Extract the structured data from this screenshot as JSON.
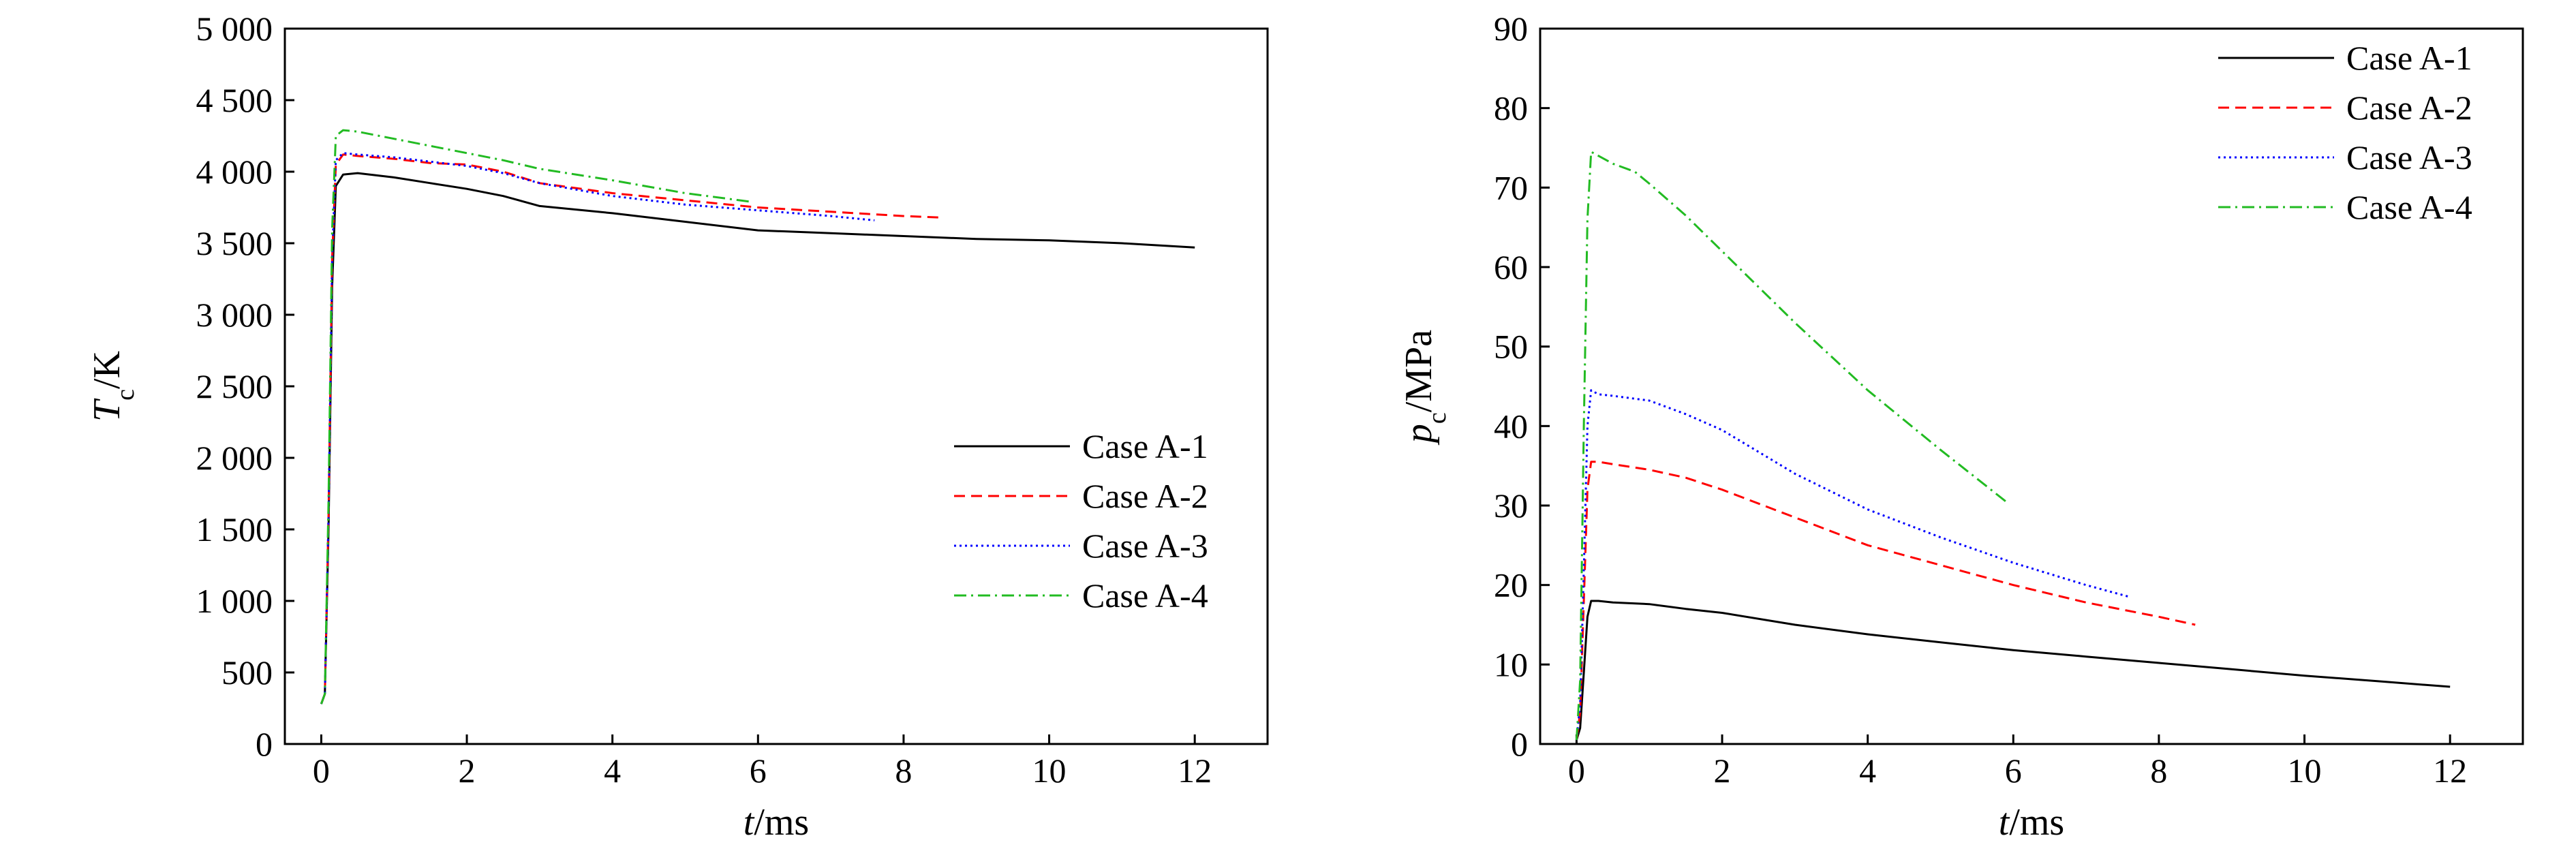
{
  "chart_data": [
    {
      "type": "line",
      "title": "",
      "xlabel": {
        "var": "t",
        "sub": "",
        "unit": "/ms"
      },
      "ylabel": {
        "var": "T",
        "sub": "c",
        "unit": "/K"
      },
      "xlim": [
        -0.5,
        13
      ],
      "ylim": [
        0,
        5000
      ],
      "xticks": [
        0,
        2,
        4,
        6,
        8,
        10,
        12
      ],
      "xtick_labels": [
        "0",
        "2",
        "4",
        "6",
        "8",
        "10",
        "12"
      ],
      "yticks": [
        0,
        500,
        1000,
        1500,
        2000,
        2500,
        3000,
        3500,
        4000,
        4500,
        5000
      ],
      "ytick_labels": [
        "0",
        "500",
        "1 000",
        "1 500",
        "2 000",
        "2 500",
        "3 000",
        "3 500",
        "4 000",
        "4 500",
        "5 000"
      ],
      "grid": false,
      "legend_position": "center-right",
      "series": [
        {
          "name": "Case A-1",
          "color": "#000000",
          "dash": "solid",
          "x": [
            0.0,
            0.05,
            0.1,
            0.15,
            0.2,
            0.3,
            0.5,
            1.0,
            1.5,
            2.0,
            2.5,
            3.0,
            4.0,
            5.0,
            6.0,
            7.0,
            8.0,
            9.0,
            10.0,
            11.0,
            12.0
          ],
          "y": [
            280,
            350,
            1500,
            3200,
            3900,
            3980,
            3990,
            3960,
            3920,
            3880,
            3830,
            3760,
            3710,
            3650,
            3590,
            3570,
            3550,
            3530,
            3520,
            3500,
            3470
          ]
        },
        {
          "name": "Case A-2",
          "color": "#ff0000",
          "dash": "dashed",
          "x": [
            0.0,
            0.05,
            0.1,
            0.15,
            0.2,
            0.3,
            0.5,
            1.0,
            1.5,
            2.0,
            2.5,
            3.0,
            4.0,
            5.0,
            6.0,
            7.0,
            8.0,
            8.5
          ],
          "y": [
            280,
            350,
            1600,
            3400,
            4050,
            4120,
            4110,
            4090,
            4060,
            4050,
            4000,
            3920,
            3850,
            3800,
            3750,
            3720,
            3690,
            3680
          ]
        },
        {
          "name": "Case A-3",
          "color": "#0000ff",
          "dash": "dotted",
          "x": [
            0.0,
            0.05,
            0.1,
            0.15,
            0.2,
            0.3,
            0.5,
            1.0,
            1.5,
            2.0,
            2.5,
            3.0,
            4.0,
            5.0,
            6.0,
            7.0,
            7.6
          ],
          "y": [
            280,
            350,
            1600,
            3400,
            4080,
            4130,
            4120,
            4100,
            4070,
            4040,
            3990,
            3920,
            3830,
            3770,
            3730,
            3690,
            3660
          ]
        },
        {
          "name": "Case A-4",
          "color": "#22bb22",
          "dash": "dashdot",
          "x": [
            0.0,
            0.05,
            0.1,
            0.15,
            0.2,
            0.3,
            0.5,
            1.0,
            1.5,
            2.0,
            2.5,
            3.0,
            4.0,
            5.0,
            5.9
          ],
          "y": [
            280,
            350,
            1700,
            3600,
            4250,
            4290,
            4280,
            4230,
            4180,
            4130,
            4080,
            4020,
            3940,
            3850,
            3790
          ]
        }
      ],
      "legend": [
        "Case A-1",
        "Case A-2",
        "Case A-3",
        "Case A-4"
      ]
    },
    {
      "type": "line",
      "title": "",
      "xlabel": {
        "var": "t",
        "sub": "",
        "unit": "/ms"
      },
      "ylabel": {
        "var": "p",
        "sub": "c",
        "unit": "/MPa"
      },
      "xlim": [
        -0.5,
        13
      ],
      "ylim": [
        0,
        90
      ],
      "xticks": [
        0,
        2,
        4,
        6,
        8,
        10,
        12
      ],
      "xtick_labels": [
        "0",
        "2",
        "4",
        "6",
        "8",
        "10",
        "12"
      ],
      "yticks": [
        0,
        10,
        20,
        30,
        40,
        50,
        60,
        70,
        80,
        90
      ],
      "ytick_labels": [
        "0",
        "10",
        "20",
        "30",
        "40",
        "50",
        "60",
        "70",
        "80",
        "90"
      ],
      "grid": false,
      "legend_position": "top-right",
      "series": [
        {
          "name": "Case A-1",
          "color": "#000000",
          "dash": "solid",
          "x": [
            0.0,
            0.05,
            0.1,
            0.15,
            0.2,
            0.3,
            0.5,
            1.0,
            1.5,
            2.0,
            3.0,
            4.0,
            5.0,
            6.0,
            7.0,
            8.0,
            9.0,
            10.0,
            11.0,
            12.0
          ],
          "y": [
            0.5,
            2,
            9,
            16,
            18,
            18,
            17.8,
            17.6,
            17,
            16.5,
            15,
            13.8,
            12.8,
            11.8,
            11,
            10.2,
            9.4,
            8.6,
            7.9,
            7.2
          ]
        },
        {
          "name": "Case A-2",
          "color": "#ff0000",
          "dash": "dashed",
          "x": [
            0.0,
            0.05,
            0.1,
            0.15,
            0.2,
            0.3,
            0.5,
            1.0,
            1.5,
            2.0,
            3.0,
            4.0,
            5.0,
            6.0,
            7.0,
            8.0,
            8.5
          ],
          "y": [
            0.5,
            4,
            18,
            32,
            35.5,
            35.5,
            35.2,
            34.5,
            33.5,
            32,
            28.5,
            25,
            22.5,
            20,
            17.8,
            16,
            15
          ]
        },
        {
          "name": "Case A-3",
          "color": "#0000ff",
          "dash": "dotted",
          "x": [
            0.0,
            0.05,
            0.1,
            0.15,
            0.2,
            0.3,
            0.5,
            1.0,
            1.5,
            2.0,
            3.0,
            4.0,
            5.0,
            6.0,
            7.0,
            7.6
          ],
          "y": [
            0.5,
            5,
            22,
            40,
            44.5,
            44,
            43.8,
            43.2,
            41.5,
            39.5,
            34,
            29.5,
            26,
            22.8,
            20,
            18.5
          ]
        },
        {
          "name": "Case A-4",
          "color": "#22bb22",
          "dash": "dashdot",
          "x": [
            0.0,
            0.05,
            0.1,
            0.15,
            0.2,
            0.3,
            0.5,
            0.8,
            1.0,
            1.5,
            2.0,
            3.0,
            4.0,
            5.0,
            5.9
          ],
          "y": [
            0.5,
            8,
            40,
            66,
            74.5,
            74,
            73,
            72,
            70.5,
            66.5,
            62,
            53,
            44.5,
            37,
            30.5
          ]
        }
      ],
      "legend": [
        "Case A-1",
        "Case A-2",
        "Case A-3",
        "Case A-4"
      ]
    }
  ]
}
